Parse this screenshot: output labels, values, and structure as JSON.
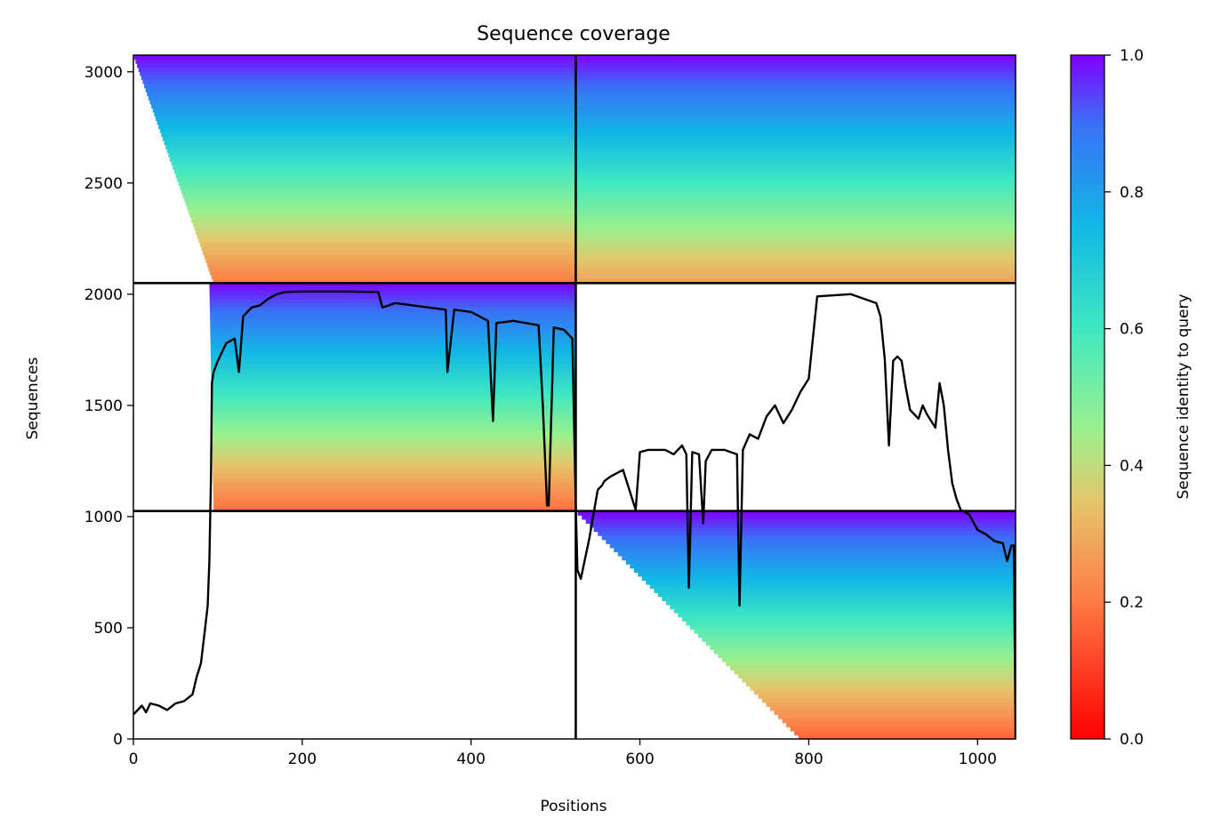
{
  "chart_data": {
    "type": "heatmap",
    "title": "Sequence coverage",
    "xlabel": "Positions",
    "ylabel": "Sequences",
    "xlim": [
      0,
      1045
    ],
    "ylim": [
      0,
      3075
    ],
    "x_ticks": [
      0,
      200,
      400,
      600,
      800,
      1000
    ],
    "y_ticks": [
      0,
      500,
      1000,
      1500,
      2000,
      2500,
      3000
    ],
    "colorscale": {
      "name": "rainbow_r",
      "label": "Sequence identity to query",
      "range": [
        0,
        1
      ],
      "ticks": [
        0.0,
        0.2,
        0.4,
        0.6,
        0.8,
        1.0
      ],
      "tick_labels": [
        "0.0",
        "0.2",
        "0.4",
        "0.6",
        "0.8",
        "1.0"
      ]
    },
    "chain_boundaries": {
      "x": [
        524
      ],
      "y": [
        1025,
        2050
      ]
    },
    "blocks": [
      {
        "name": "chain-A-query-rows",
        "x": [
          0,
          524
        ],
        "y": [
          2050,
          3075
        ],
        "identity": [
          1.0,
          0.2
        ],
        "coverage_start_x": [
          0,
          95
        ]
      },
      {
        "name": "chain-B-query-rows",
        "x": [
          524,
          1045
        ],
        "y": [
          2050,
          3075
        ],
        "identity": [
          1.0,
          0.28
        ],
        "coverage_start_x": [
          524,
          524
        ]
      },
      {
        "name": "chain-A-only-rows",
        "x": [
          0,
          524
        ],
        "y": [
          1025,
          2050
        ],
        "identity": [
          1.0,
          0.18
        ],
        "coverage_start_x": [
          90,
          95
        ]
      },
      {
        "name": "chain-B-only-rows",
        "x": [
          524,
          1045
        ],
        "y": [
          0,
          1025
        ],
        "identity": [
          1.0,
          0.16
        ],
        "coverage_start_x": [
          524,
          790
        ]
      }
    ],
    "series": [
      {
        "type": "line",
        "x": [
          0,
          5,
          10,
          15,
          20,
          30,
          40,
          50,
          60,
          70,
          75,
          80,
          85,
          88,
          90,
          92,
          93,
          95,
          100,
          110,
          120,
          125,
          130,
          140,
          150,
          160,
          170,
          180,
          200,
          250,
          290,
          295,
          310,
          330,
          350,
          370,
          372,
          380,
          400,
          420,
          426,
          430,
          450,
          480,
          485,
          490,
          492,
          498,
          510,
          520,
          524,
          526,
          530,
          540,
          550,
          555,
          558,
          565,
          580,
          595,
          600,
          610,
          630,
          640,
          650,
          655,
          658,
          662,
          670,
          675,
          678,
          685,
          700,
          715,
          718,
          722,
          730,
          740,
          750,
          760,
          770,
          780,
          790,
          800,
          810,
          850,
          880,
          885,
          890,
          895,
          900,
          905,
          910,
          915,
          920,
          930,
          935,
          940,
          950,
          955,
          960,
          965,
          970,
          975,
          980,
          990,
          1000,
          1010,
          1020,
          1030,
          1035,
          1040,
          1043,
          1045
        ],
        "y": [
          110,
          130,
          150,
          120,
          160,
          150,
          130,
          160,
          170,
          200,
          280,
          340,
          500,
          600,
          800,
          1200,
          1600,
          1650,
          1700,
          1780,
          1800,
          1650,
          1900,
          1940,
          1950,
          1980,
          2000,
          2010,
          2012,
          2012,
          2010,
          1940,
          1960,
          1950,
          1940,
          1930,
          1650,
          1930,
          1920,
          1880,
          1430,
          1870,
          1880,
          1860,
          1500,
          1050,
          1050,
          1850,
          1840,
          1800,
          1050,
          760,
          720,
          900,
          1120,
          1140,
          1160,
          1180,
          1210,
          1030,
          1290,
          1300,
          1300,
          1280,
          1320,
          1280,
          680,
          1290,
          1280,
          970,
          1250,
          1300,
          1300,
          1280,
          600,
          1300,
          1370,
          1350,
          1450,
          1500,
          1420,
          1480,
          1560,
          1620,
          1990,
          2000,
          1960,
          1900,
          1710,
          1320,
          1700,
          1720,
          1700,
          1580,
          1480,
          1440,
          1500,
          1460,
          1400,
          1600,
          1500,
          1300,
          1150,
          1080,
          1030,
          1010,
          940,
          920,
          890,
          880,
          800,
          870,
          870,
          0
        ]
      }
    ],
    "grid": false,
    "legend": "none"
  }
}
